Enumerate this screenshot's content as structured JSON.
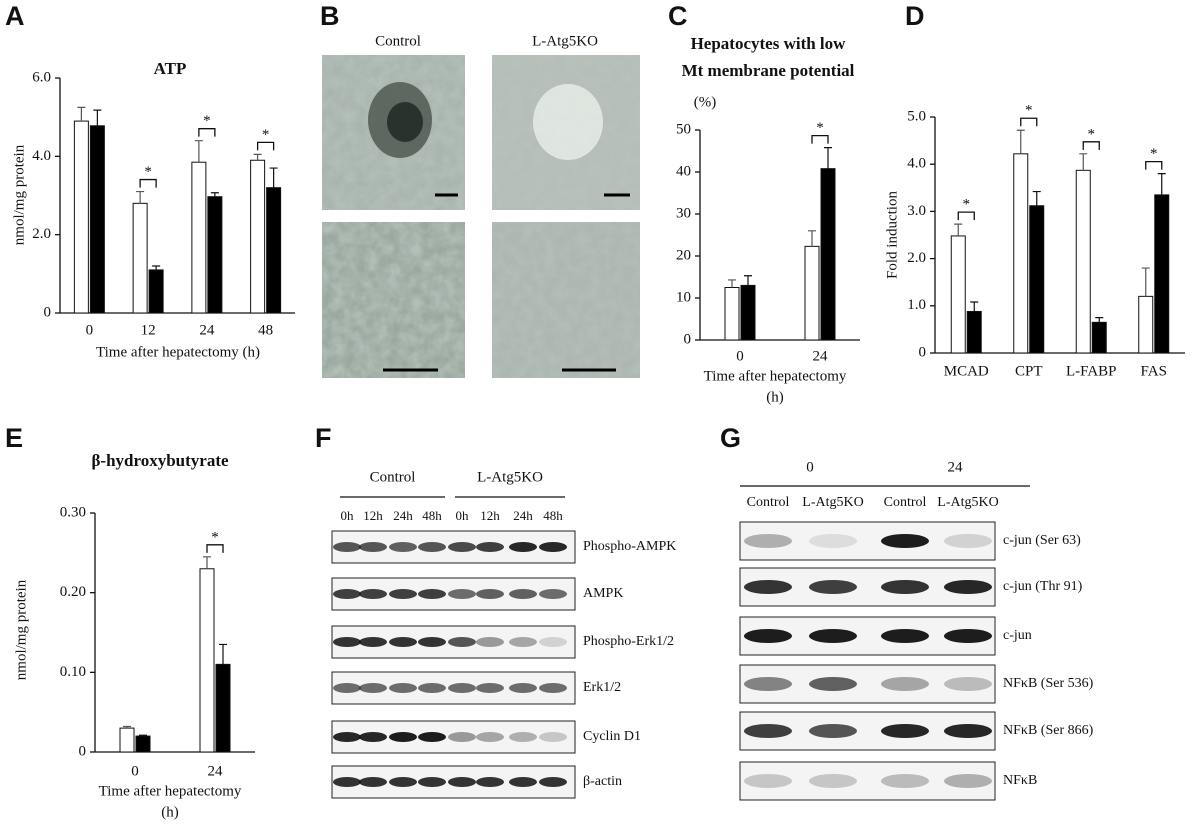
{
  "chart_data": [
    {
      "type": "bar",
      "panel": "A",
      "title": "ATP",
      "y_label": "nmol/mg protein",
      "x_label": [
        "Time after hepatectomy (h)"
      ],
      "categories": [
        "0",
        "12",
        "24",
        "48"
      ],
      "series": [
        {
          "color": "#ffffff",
          "values": [
            4.9,
            2.8,
            3.85,
            3.9
          ],
          "errors": [
            0.35,
            0.3,
            0.55,
            0.15
          ]
        },
        {
          "color": "#000000",
          "values": [
            4.78,
            1.1,
            2.97,
            3.2
          ],
          "errors": [
            0.4,
            0.1,
            0.1,
            0.5
          ]
        }
      ],
      "annotations": [
        null,
        "*",
        "*",
        "*"
      ],
      "ylim": [
        0,
        6
      ],
      "yticks": [
        0,
        {
          "value": 2,
          "label": "2.0"
        },
        {
          "value": 4,
          "label": "4.0"
        },
        {
          "value": 6,
          "label": "6.0"
        }
      ]
    },
    {
      "type": "bar",
      "panel": "C",
      "title": [
        "Hepatocytes with low",
        "Mt membrane potential"
      ],
      "y_unit": "(%)",
      "x_label": [
        "Time after hepatectomy",
        "(h)"
      ],
      "categories": [
        "0",
        "24"
      ],
      "series": [
        {
          "color": "#ffffff",
          "values": [
            12.5,
            22.3
          ],
          "errors": [
            1.8,
            3.7
          ]
        },
        {
          "color": "#000000",
          "values": [
            13,
            40.8
          ],
          "errors": [
            2.3,
            5
          ]
        }
      ],
      "annotations": [
        null,
        "*"
      ],
      "ylim": [
        0,
        50
      ],
      "yticks": [
        0,
        10,
        20,
        30,
        40,
        50
      ]
    },
    {
      "type": "bar",
      "panel": "D",
      "y_label": "Fold induction",
      "categories": [
        "MCAD",
        "CPT",
        "L-FABP",
        "FAS"
      ],
      "series": [
        {
          "color": "#ffffff",
          "values": [
            2.48,
            4.22,
            3.87,
            1.2
          ],
          "errors": [
            0.25,
            0.5,
            0.35,
            0.6
          ]
        },
        {
          "color": "#000000",
          "values": [
            0.88,
            3.12,
            0.65,
            3.35
          ],
          "errors": [
            0.2,
            0.3,
            0.1,
            0.45
          ]
        }
      ],
      "annotations": [
        "*",
        "*",
        "*",
        "*"
      ],
      "ylim": [
        0,
        5
      ],
      "yticks": [
        0,
        {
          "value": 1,
          "label": "1.0"
        },
        {
          "value": 2,
          "label": "2.0"
        },
        {
          "value": 3,
          "label": "3.0"
        },
        {
          "value": 4,
          "label": "4.0"
        },
        {
          "value": 5,
          "label": "5.0"
        }
      ]
    },
    {
      "type": "bar",
      "panel": "E",
      "title": "β-hydroxybutyrate",
      "y_label": "nmol/mg protein",
      "x_label": [
        "Time after hepatectomy",
        "(h)"
      ],
      "categories": [
        "0",
        "24"
      ],
      "series": [
        {
          "color": "#ffffff",
          "values": [
            0.03,
            0.23
          ],
          "errors": [
            0.002,
            0.015
          ]
        },
        {
          "color": "#000000",
          "values": [
            0.02,
            0.11
          ],
          "errors": [
            0.001,
            0.025
          ]
        }
      ],
      "annotations": [
        null,
        "*"
      ],
      "ylim": [
        0,
        0.3
      ],
      "yticks": [
        0,
        {
          "value": 0.1,
          "label": "0.10"
        },
        {
          "value": 0.2,
          "label": "0.20"
        },
        {
          "value": 0.3,
          "label": "0.30"
        }
      ]
    }
  ],
  "micrographs": {
    "panel": "B",
    "columns": [
      "Control",
      "L-Atg5KO"
    ]
  },
  "blot_f": {
    "panel": "F",
    "groups": [
      "Control",
      "L-Atg5KO"
    ],
    "lanes": [
      "0h",
      "12h",
      "24h",
      "48h",
      "0h",
      "12h",
      "24h",
      "48h"
    ],
    "rows": [
      "Phospho-AMPK",
      "AMPK",
      "Phospho-Erk1/2",
      "Erk1/2",
      "Cyclin D1",
      "β-actin"
    ]
  },
  "blot_g": {
    "panel": "G",
    "groups": [
      "0",
      "24"
    ],
    "lanes": [
      "Control",
      "L-Atg5KO",
      "Control",
      "L-Atg5KO"
    ],
    "rows": [
      "c-jun (Ser 63)",
      "c-jun (Thr 91)",
      "c-jun",
      "NFκB (Ser 536)",
      "NFκB (Ser 866)",
      "NFκB"
    ]
  }
}
